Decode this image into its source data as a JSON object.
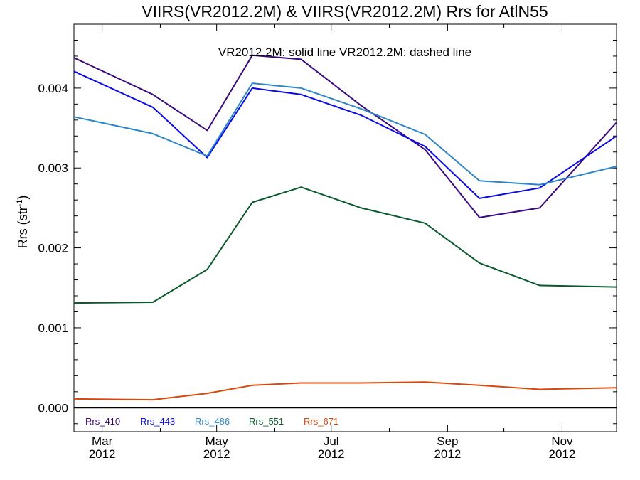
{
  "chart_data": {
    "type": "line",
    "title": "VIIRS(VR2012.2M) & VIIRS(VR2012.2M)  Rrs for AtlN55",
    "annotation": "VR2012.2M: solid line   VR2012.2M: dashed line",
    "ylabel_main": "Rrs (str",
    "ylabel_sup": "-1",
    "ylabel_end": ")",
    "xlabel": "",
    "ylim": [
      -0.0003,
      0.0048
    ],
    "xlim": [
      "2012-02-15",
      "2012-11-30"
    ],
    "y_ticks": [
      "0.000",
      "0.001",
      "0.002",
      "0.003",
      "0.004"
    ],
    "x_ticks": [
      {
        "date": "2012-03-01",
        "month": "Mar",
        "year": "2012"
      },
      {
        "date": "2012-05-01",
        "month": "May",
        "year": "2012"
      },
      {
        "date": "2012-07-01",
        "month": "Jul",
        "year": "2012"
      },
      {
        "date": "2012-09-01",
        "month": "Sep",
        "year": "2012"
      },
      {
        "date": "2012-11-01",
        "month": "Nov",
        "year": "2012"
      }
    ],
    "zero_line": true,
    "grid": false,
    "legend_position": "bottom-left",
    "x": [
      "2012-02-15",
      "2012-03-28",
      "2012-04-26",
      "2012-05-20",
      "2012-06-15",
      "2012-07-17",
      "2012-08-20",
      "2012-09-18",
      "2012-10-20",
      "2012-11-30"
    ],
    "series": [
      {
        "name": "Rrs_410",
        "color": "#3b0a7e",
        "style": "solid",
        "values": [
          0.00438,
          0.00392,
          0.00347,
          0.00441,
          0.00436,
          0.00378,
          0.00323,
          0.00238,
          0.0025,
          0.00357
        ]
      },
      {
        "name": "Rrs_443",
        "color": "#0a0ae6",
        "style": "solid",
        "values": [
          0.00421,
          0.00376,
          0.00313,
          0.004,
          0.00392,
          0.00366,
          0.00327,
          0.00262,
          0.00275,
          0.0034
        ]
      },
      {
        "name": "Rrs_486",
        "color": "#2d86c8",
        "style": "solid",
        "values": [
          0.00364,
          0.00343,
          0.00315,
          0.00406,
          0.004,
          0.00374,
          0.00342,
          0.00284,
          0.00279,
          0.00302
        ]
      },
      {
        "name": "Rrs_551",
        "color": "#075a2b",
        "style": "solid",
        "values": [
          0.00131,
          0.00132,
          0.00173,
          0.00257,
          0.00276,
          0.0025,
          0.00231,
          0.00181,
          0.00153,
          0.00151
        ]
      },
      {
        "name": "Rrs_671",
        "color": "#d8480c",
        "style": "solid",
        "values": [
          0.00011,
          0.0001,
          0.00018,
          0.00028,
          0.00031,
          0.00031,
          0.00032,
          0.00028,
          0.00023,
          0.00025
        ]
      }
    ]
  }
}
